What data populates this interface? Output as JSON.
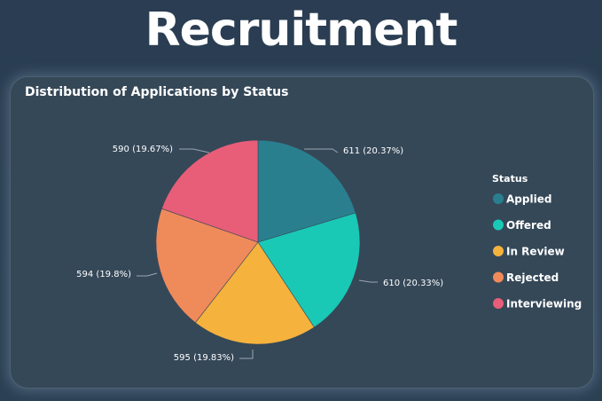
{
  "page": {
    "title": "Recruitment"
  },
  "card": {
    "title": "Distribution of Applications by Status"
  },
  "chart_data": {
    "type": "pie",
    "title": "Distribution of Applications by Status",
    "legend_title": "Status",
    "legend_position": "right",
    "categories": [
      "Applied",
      "Offered",
      "In Review",
      "Rejected",
      "Interviewing"
    ],
    "values": [
      611,
      610,
      595,
      594,
      590
    ],
    "percent_labels": [
      "20.37%",
      "20.33%",
      "19.83%",
      "19.8%",
      "19.67%"
    ],
    "data_labels": [
      "611 (20.37%)",
      "610 (20.33%)",
      "595 (19.83%)",
      "594 (19.8%)",
      "590 (19.67%)"
    ],
    "colors": [
      "#2a7f8f",
      "#19c9b6",
      "#f5b23d",
      "#ef8a5a",
      "#e85d78"
    ]
  }
}
